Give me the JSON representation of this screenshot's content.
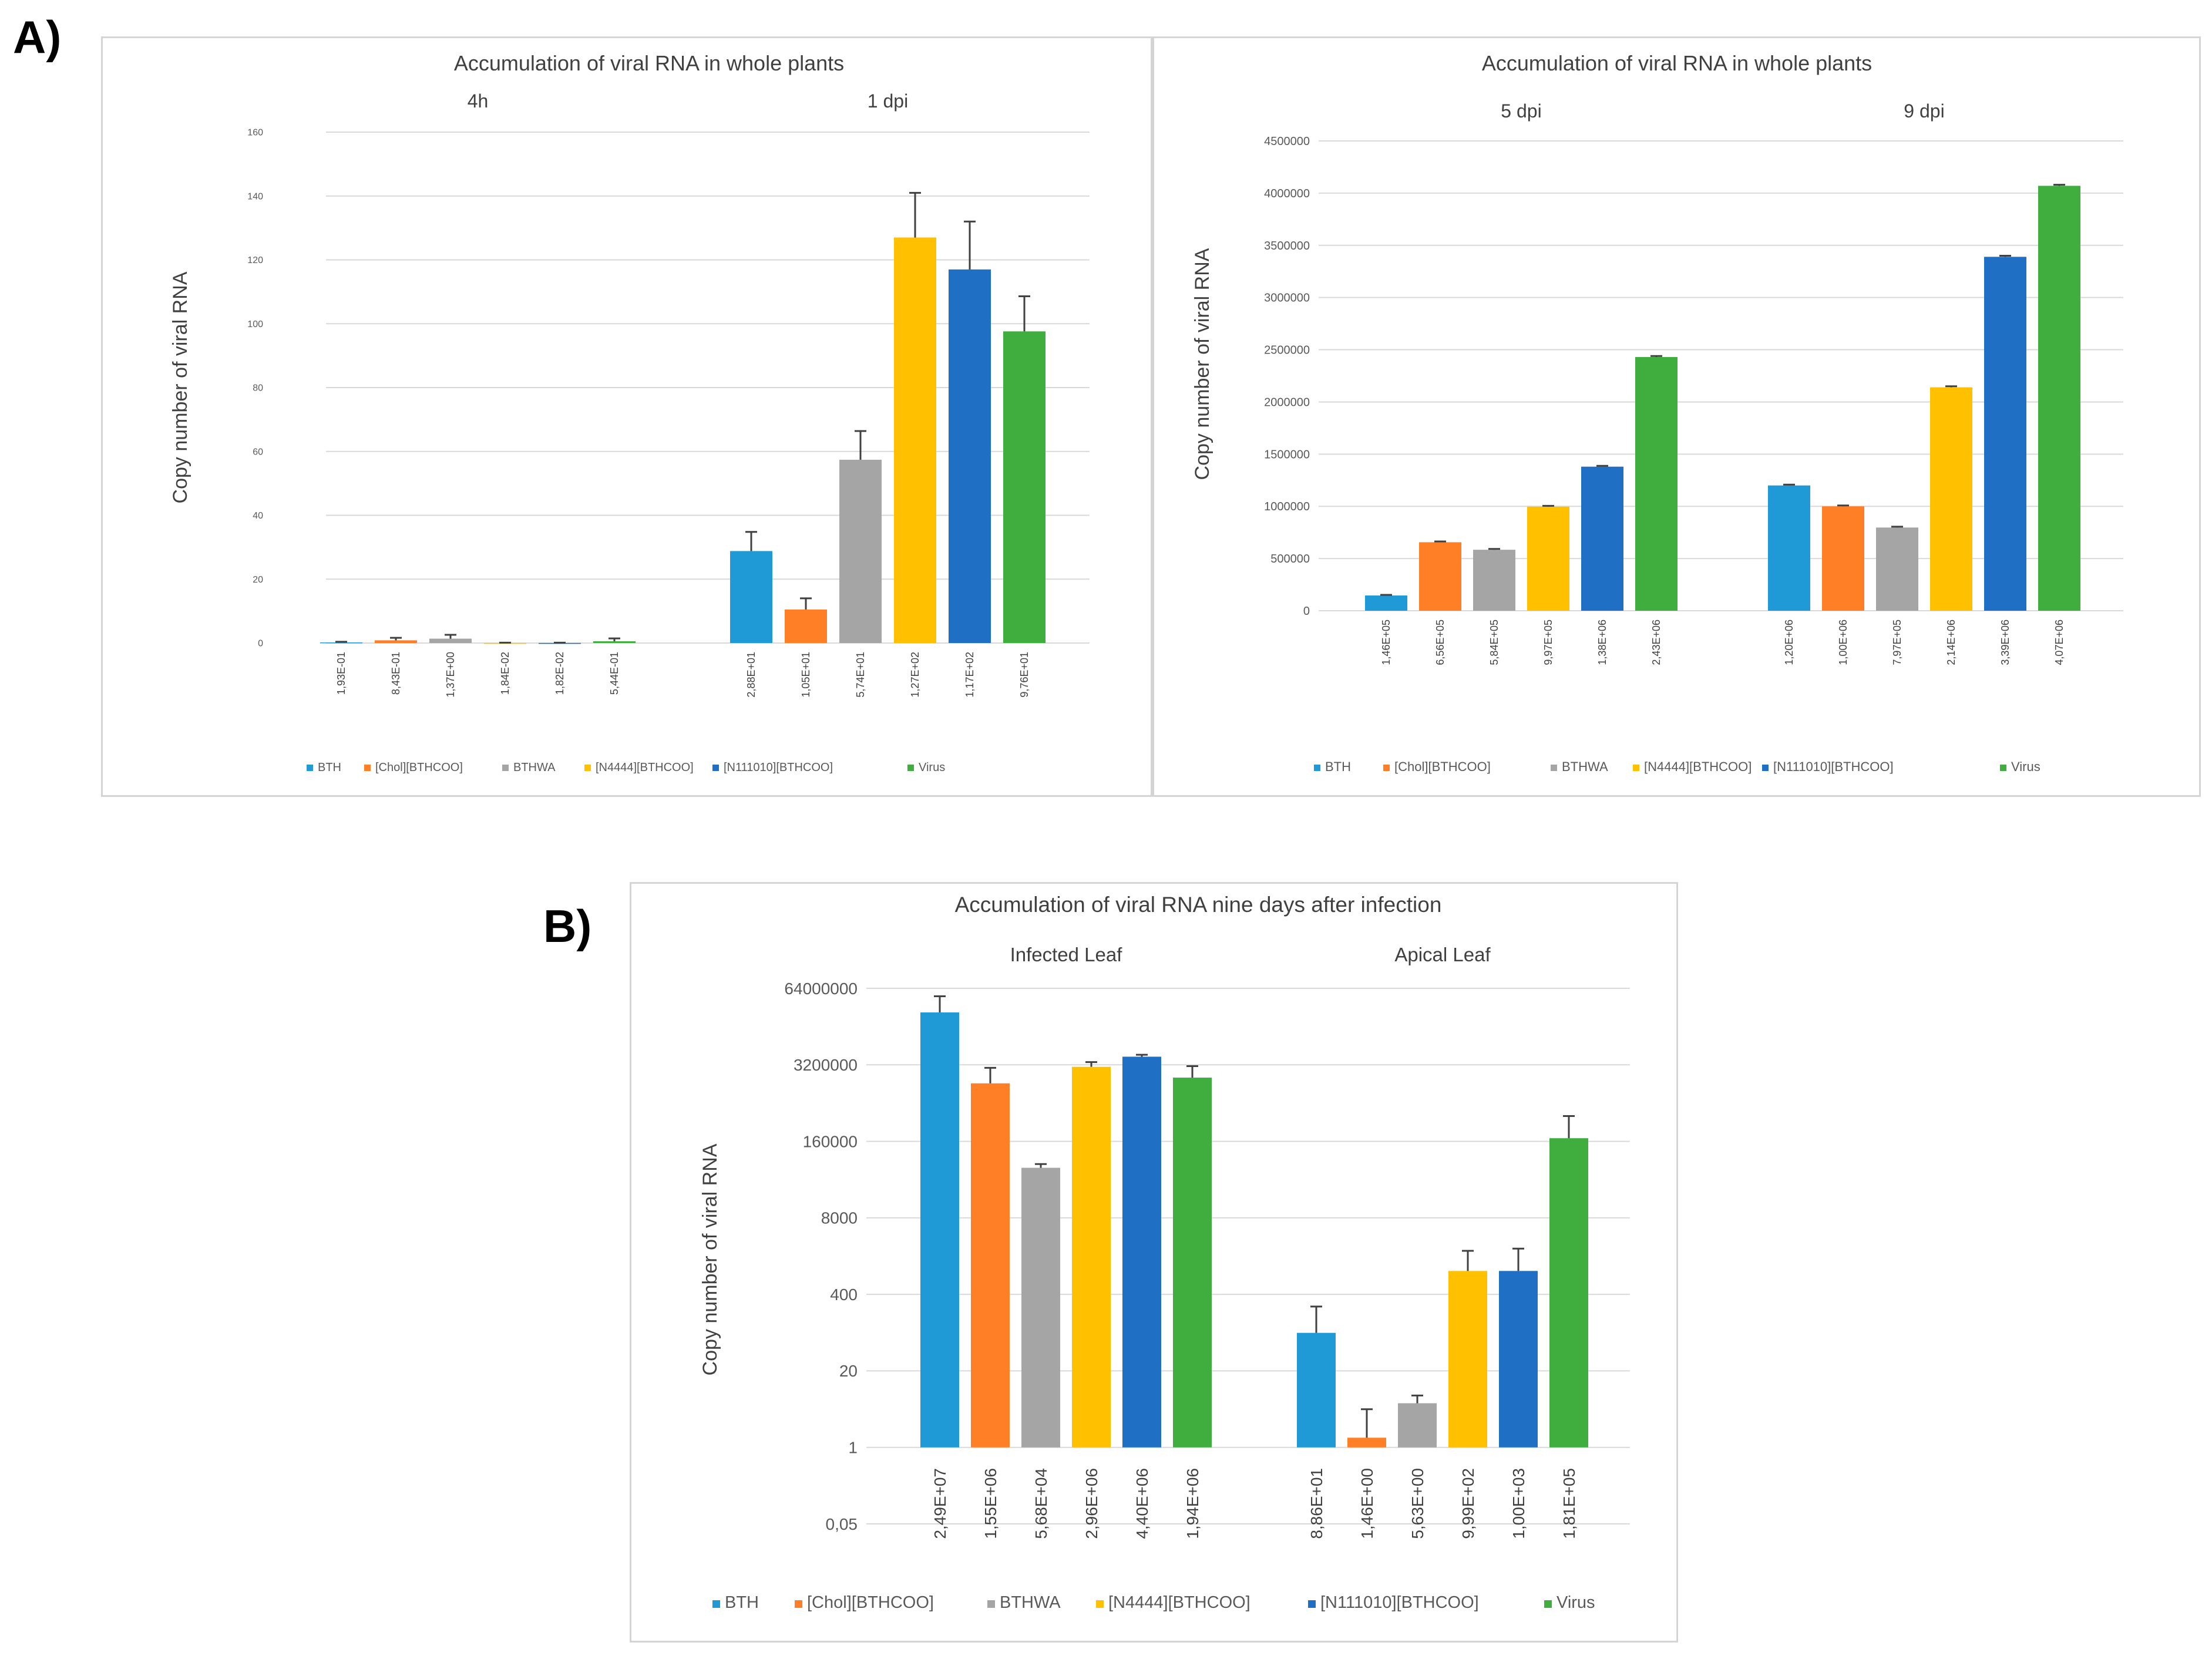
{
  "panels": {
    "a_label": "A)",
    "b_label": "B)"
  },
  "colors": {
    "BTH": "#1f9ad6",
    "[Chol][BTHCOO]": "#ff7f27",
    "BTHWA": "#a5a5a5",
    "[N4444][BTHCOO]": "#ffc000",
    "[N111010][BTHCOO]": "#1f6fc5",
    "Virus": "#3fae3f"
  },
  "legend": [
    "BTH",
    "[Chol][BTHCOO]",
    "BTHWA",
    "[N4444][BTHCOO]",
    "[N111010][BTHCOO]",
    "Virus"
  ],
  "chart_data": [
    {
      "id": "a1",
      "type": "bar",
      "title": "Accumulation of viral RNA in whole plants",
      "ylabel": "Copy number of viral RNA",
      "yscale": "linear",
      "ylim": [
        0,
        160
      ],
      "yticks": [
        "0",
        "20",
        "40",
        "60",
        "80",
        "100",
        "120",
        "140",
        "160"
      ],
      "yticks_values": [
        0,
        20,
        40,
        60,
        80,
        100,
        120,
        140,
        160
      ],
      "legend_position": "bottom",
      "groups": [
        {
          "name": "4h",
          "values": [
            0.193,
            0.843,
            1.37,
            0.0184,
            0.0182,
            0.544
          ],
          "errors": [
            0.2,
            0.8,
            1.2,
            0.1,
            0.1,
            0.9
          ],
          "labels": [
            "1,93E-01",
            "8,43E-01",
            "1,37E+00",
            "1,84E-02",
            "1,82E-02",
            "5,44E-01"
          ]
        },
        {
          "name": "1 dpi",
          "values": [
            28.8,
            10.5,
            57.4,
            127,
            117,
            97.6
          ],
          "errors": [
            6,
            3.5,
            9,
            14,
            15,
            11
          ],
          "labels": [
            "2,88E+01",
            "1,05E+01",
            "5,74E+01",
            "1,27E+02",
            "1,17E+02",
            "9,76E+01"
          ]
        }
      ]
    },
    {
      "id": "a2",
      "type": "bar",
      "title": "Accumulation of viral RNA in whole plants",
      "ylabel": "Copy number of viral RNA",
      "yscale": "linear",
      "ylim": [
        0,
        4500000
      ],
      "yticks": [
        "0",
        "500000",
        "1000000",
        "1500000",
        "2000000",
        "2500000",
        "3000000",
        "3500000",
        "4000000",
        "4500000"
      ],
      "yticks_values": [
        0,
        500000,
        1000000,
        1500000,
        2000000,
        2500000,
        3000000,
        3500000,
        4000000,
        4500000
      ],
      "legend_position": "bottom",
      "groups": [
        {
          "name": "5 dpi",
          "values": [
            146000,
            656000,
            584000,
            997000,
            1380000,
            2430000
          ],
          "errors": [
            6000,
            8000,
            8000,
            8000,
            8000,
            10000
          ],
          "labels": [
            "1,46E+05",
            "6,56E+05",
            "5,84E+05",
            "9,97E+05",
            "1,38E+06",
            "2,43E+06"
          ]
        },
        {
          "name": "9 dpi",
          "values": [
            1200000,
            1000000,
            797000,
            2140000,
            3390000,
            4070000
          ],
          "errors": [
            8000,
            8000,
            8000,
            10000,
            10000,
            10000
          ],
          "labels": [
            "1,20E+06",
            "1,00E+06",
            "7,97E+05",
            "2,14E+06",
            "3,39E+06",
            "4,07E+06"
          ]
        }
      ]
    },
    {
      "id": "b",
      "type": "bar",
      "title": "Accumulation of viral RNA nine days after infection",
      "ylabel": "Copy number of viral RNA",
      "yscale": "log",
      "ylim": [
        0.05,
        64000000
      ],
      "yticks": [
        "0,05",
        "1",
        "20",
        "400",
        "8000",
        "160000",
        "3200000",
        "64000000"
      ],
      "yticks_values": [
        0.05,
        1,
        20,
        400,
        8000,
        160000,
        3200000,
        64000000
      ],
      "legend_position": "bottom",
      "groups": [
        {
          "name": "Infected Leaf",
          "values": [
            24900000,
            1550000,
            56800,
            2960000,
            4400000,
            1940000
          ],
          "errors": [
            22000000,
            1300000,
            9000,
            600000,
            350000,
            1100000
          ],
          "labels": [
            "2,49E+07",
            "1,55E+06",
            "5,68E+04",
            "2,96E+06",
            "4,40E+06",
            "1,94E+06"
          ]
        },
        {
          "name": "Apical Leaf",
          "values": [
            88.6,
            1.46,
            5.63,
            999,
            1000,
            181000
          ],
          "errors": [
            160,
            3,
            2,
            1200,
            1400,
            250000
          ],
          "labels": [
            "8,86E+01",
            "1,46E+00",
            "5,63E+00",
            "9,99E+02",
            "1,00E+03",
            "1,81E+05"
          ]
        }
      ]
    }
  ]
}
